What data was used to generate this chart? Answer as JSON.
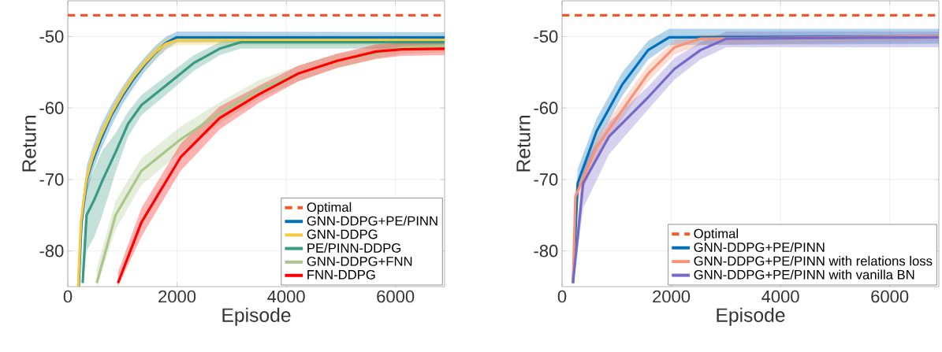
{
  "chart_data": [
    {
      "type": "line",
      "xlabel": "Episode",
      "ylabel": "Return",
      "xlim": [
        0,
        6900
      ],
      "ylim": [
        -85,
        -45
      ],
      "xticks": [
        0,
        2000,
        4000,
        6000
      ],
      "yticks": [
        -80,
        -70,
        -60,
        -50
      ],
      "grid": true,
      "legend": "bottom right",
      "line_style": "solid",
      "marker": "none",
      "ref_lines": [
        {
          "axis": "y",
          "value": -47,
          "label": "Optimal",
          "color": "#f05a28",
          "line_style": "dashed"
        }
      ],
      "series": [
        {
          "name": "GNN-DDPG+PE/PINN",
          "color": "#0072bd",
          "x": [
            200,
            250,
            350,
            450,
            600,
            800,
            1000,
            1200,
            1400,
            1600,
            1800,
            2000,
            6900
          ],
          "values": [
            -85,
            -76,
            -70,
            -67.5,
            -64.5,
            -61,
            -58.3,
            -56,
            -54,
            -52.3,
            -50.9,
            -50.1,
            -50.1
          ],
          "lower": [
            -85,
            -78,
            -72,
            -69,
            -66,
            -62.5,
            -59.5,
            -57.2,
            -55,
            -53.3,
            -51.8,
            -50.8,
            -50.8
          ],
          "upper": [
            -84,
            -74,
            -68,
            -65.5,
            -62.5,
            -59.5,
            -57,
            -54.8,
            -53,
            -51.3,
            -50,
            -49.3,
            -49.4
          ]
        },
        {
          "name": "GNN-DDPG",
          "color": "#f7ca3c",
          "x": [
            190,
            240,
            340,
            450,
            600,
            800,
            1000,
            1200,
            1400,
            1600,
            1800,
            2000,
            6900
          ],
          "values": [
            -85,
            -76,
            -70,
            -67,
            -64,
            -60.7,
            -58,
            -55.7,
            -53.8,
            -52.2,
            -51,
            -50.5,
            -50.5
          ],
          "lower": [
            -85,
            -77,
            -71,
            -68,
            -65,
            -61.5,
            -58.8,
            -56.5,
            -54.5,
            -53,
            -51.8,
            -51.2,
            -51.2
          ],
          "upper": [
            -84.5,
            -75,
            -69,
            -66,
            -63,
            -60,
            -57.2,
            -55,
            -53.1,
            -51.5,
            -50.3,
            -49.9,
            -49.9
          ]
        },
        {
          "name": "PE/PINN-DDPG",
          "color": "#3a9a82",
          "x": [
            272,
            344,
            487,
            631,
            875,
            1104,
            1348,
            1821,
            2308,
            2781,
            3168,
            6900
          ],
          "values": [
            -84.5,
            -75,
            -72.8,
            -70.2,
            -66.2,
            -62.2,
            -59.6,
            -56.7,
            -53.7,
            -51.7,
            -50.8,
            -50.8
          ],
          "lower": [
            -85,
            -80,
            -78,
            -75,
            -69,
            -64,
            -61,
            -58,
            -54.8,
            -52.6,
            -51.7,
            -51.7
          ],
          "upper": [
            -82,
            -71,
            -68.5,
            -66,
            -63.5,
            -60.5,
            -58.2,
            -55.4,
            -52.6,
            -50.8,
            -50.1,
            -50.2
          ]
        },
        {
          "name": "GNN-DDPG+FNN",
          "color": "#a9c78a",
          "x": [
            530,
            875,
            1348,
            2065,
            2781,
            3498,
            4215,
            4932,
            5649,
            6122,
            6900
          ],
          "values": [
            -84.5,
            -75,
            -68.8,
            -64.4,
            -60.7,
            -57.4,
            -55.2,
            -53.4,
            -52.3,
            -51.5,
            -51.3
          ],
          "lower": [
            -85,
            -77,
            -70.8,
            -66.2,
            -62.2,
            -58.7,
            -56.3,
            -54.4,
            -53.2,
            -52.4,
            -52.2
          ],
          "upper": [
            -82.5,
            -73,
            -67,
            -62.6,
            -59.2,
            -56.1,
            -54.1,
            -52.4,
            -51.4,
            -50.6,
            -50.4
          ]
        },
        {
          "name": "FNN-DDPG",
          "color": "#ff0000",
          "x": [
            918,
            1348,
            2065,
            2781,
            3498,
            4215,
            4932,
            5649,
            6122,
            6900
          ],
          "values": [
            -84.5,
            -76,
            -66.9,
            -61.4,
            -58.1,
            -55.2,
            -53.4,
            -52.1,
            -51.8,
            -51.7
          ],
          "lower": [
            -85,
            -78,
            -68.8,
            -63,
            -59.3,
            -56.3,
            -54.4,
            -53.1,
            -52.7,
            -52.6
          ],
          "upper": [
            -83,
            -74,
            -65,
            -59.8,
            -56.9,
            -54.1,
            -52.4,
            -51.1,
            -50.9,
            -50.8
          ]
        }
      ]
    },
    {
      "type": "line",
      "xlabel": "Episode",
      "ylabel": "Return",
      "xlim": [
        0,
        6900
      ],
      "ylim": [
        -85,
        -45
      ],
      "xticks": [
        0,
        2000,
        4000,
        6000
      ],
      "yticks": [
        -80,
        -70,
        -60,
        -50
      ],
      "grid": true,
      "legend": "bottom right",
      "line_style": "solid",
      "marker": "none",
      "ref_lines": [
        {
          "axis": "y",
          "value": -47,
          "label": "Optimal",
          "color": "#f05a28",
          "line_style": "dashed"
        }
      ],
      "series": [
        {
          "name": "GNN-DDPG+PE/PINN",
          "color": "#0072bd",
          "x": [
            200,
            287,
            630,
            1103,
            1576,
            1963,
            6900
          ],
          "values": [
            -84.5,
            -70.5,
            -63.3,
            -56.7,
            -51.9,
            -50.1,
            -50
          ],
          "lower": [
            -85,
            -72,
            -65,
            -58.3,
            -53.2,
            -51.2,
            -51
          ],
          "upper": [
            -83,
            -68.5,
            -61.5,
            -55,
            -50.6,
            -48.9,
            -48.9
          ]
        },
        {
          "name": "GNN-DDPG+PE/PINN with relations loss",
          "color": "#fa9275",
          "x": [
            200,
            244,
            630,
            1103,
            1576,
            2063,
            2536,
            6900
          ],
          "values": [
            -84.5,
            -72.4,
            -65.5,
            -60.3,
            -55.2,
            -51.5,
            -50.3,
            -50
          ],
          "lower": [
            -85,
            -74,
            -67,
            -61.5,
            -56.3,
            -52.5,
            -51.2,
            -50.6
          ],
          "upper": [
            -83,
            -71,
            -64,
            -59,
            -54,
            -50.5,
            -49.7,
            -49.7
          ]
        },
        {
          "name": "GNN-DDPG+PE/PINN with vanilla BN",
          "color": "#7468c8",
          "x": [
            200,
            387,
            860,
            1576,
            2063,
            2536,
            3009,
            6900
          ],
          "values": [
            -84.5,
            -70.5,
            -64,
            -58.5,
            -54.5,
            -51.9,
            -50.3,
            -50.1
          ],
          "lower": [
            -85,
            -74,
            -66.5,
            -60.2,
            -56,
            -53.2,
            -51.5,
            -51.5
          ],
          "upper": [
            -82,
            -68,
            -62,
            -57,
            -53,
            -50.8,
            -49.3,
            -49.3
          ]
        }
      ]
    }
  ]
}
